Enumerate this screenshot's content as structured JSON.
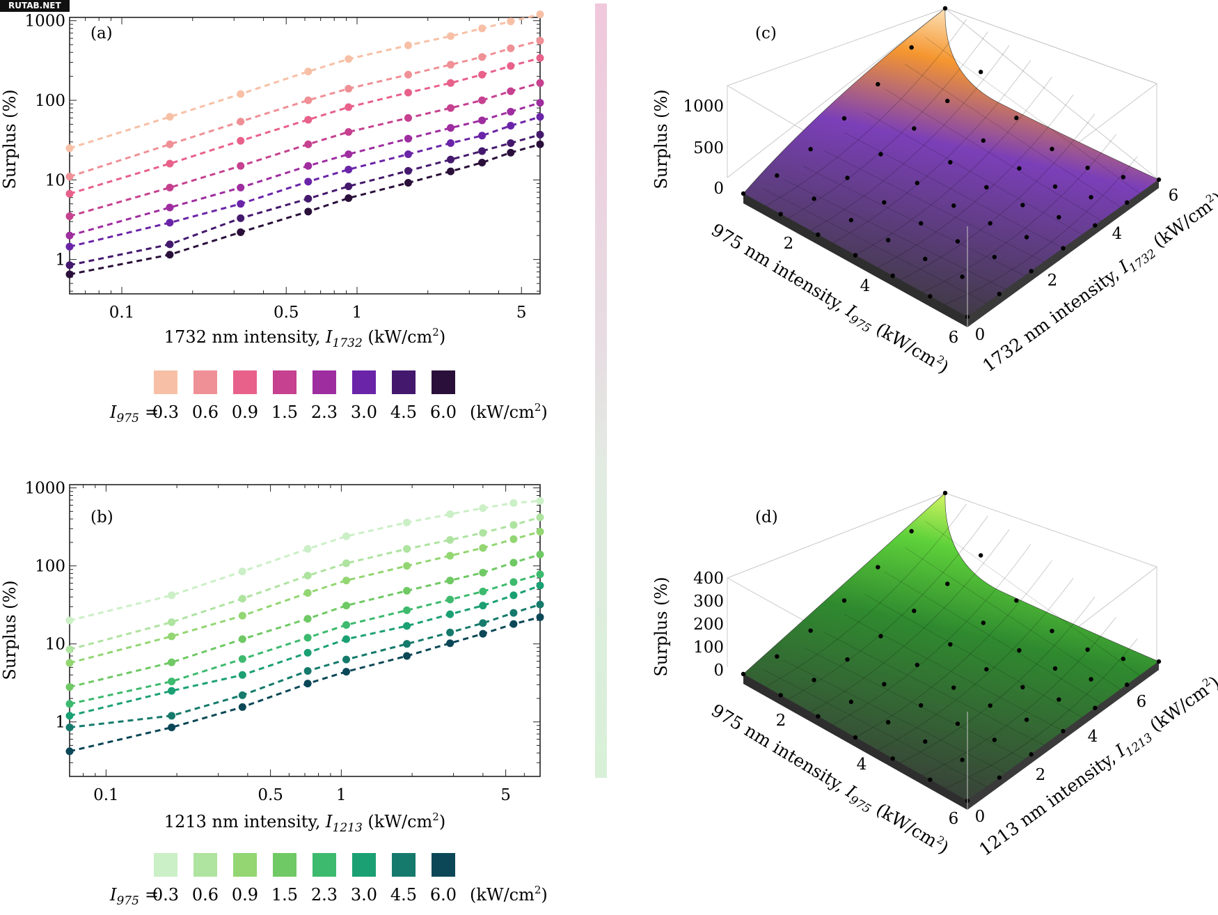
{
  "watermark": "RUTAB.NET",
  "chart_data": [
    {
      "panel": "(a)",
      "type": "line",
      "xscale": "log",
      "yscale": "log",
      "xlabel": "1732 nm intensity, I1732 (kW/cm2)",
      "xlabel_parts": {
        "pre": "1732 nm intensity, ",
        "var": "I",
        "sub": "1732",
        "unit_pre": " (kW/cm",
        "sup": "2",
        "unit_post": ")"
      },
      "ylabel": "Surplus (%)",
      "xlim": [
        0.06,
        6.0
      ],
      "ylim": [
        0.37,
        1100
      ],
      "xticks": [
        {
          "v": 0.1,
          "label": "0.1"
        },
        {
          "v": 0.5,
          "label": "0.5"
        },
        {
          "v": 1,
          "label": "1"
        },
        {
          "v": 5,
          "label": "5"
        }
      ],
      "yticks": [
        {
          "v": 1,
          "label": "1"
        },
        {
          "v": 10,
          "label": "10"
        },
        {
          "v": 100,
          "label": "100"
        },
        {
          "v": 1000,
          "label": "1000"
        }
      ],
      "x": [
        0.06,
        0.16,
        0.32,
        0.62,
        0.92,
        1.65,
        2.5,
        3.4,
        4.5,
        6.0
      ],
      "series": [
        {
          "name": "0.3",
          "color": "#f7c0a6",
          "values": [
            25,
            62,
            120,
            230,
            330,
            490,
            640,
            800,
            980,
            1200
          ]
        },
        {
          "name": "0.6",
          "color": "#ef9096",
          "values": [
            11,
            28,
            54,
            100,
            140,
            210,
            280,
            350,
            450,
            560
          ]
        },
        {
          "name": "0.9",
          "color": "#e8618a",
          "values": [
            6.7,
            16,
            31,
            57,
            82,
            125,
            165,
            210,
            270,
            340
          ]
        },
        {
          "name": "1.5",
          "color": "#c6418f",
          "values": [
            3.5,
            8,
            15,
            28,
            40,
            60,
            80,
            100,
            130,
            165
          ]
        },
        {
          "name": "2.3",
          "color": "#9e2d9f",
          "values": [
            2.0,
            4.5,
            8,
            15,
            21,
            33,
            45,
            56,
            72,
            93
          ]
        },
        {
          "name": "3.0",
          "color": "#6a24a8",
          "values": [
            1.45,
            2.9,
            5.0,
            9.5,
            13.5,
            21,
            29,
            36,
            48,
            62
          ]
        },
        {
          "name": "4.5",
          "color": "#44196d",
          "values": [
            0.85,
            1.55,
            3.3,
            5.8,
            8.3,
            13,
            18,
            23,
            29,
            37
          ]
        },
        {
          "name": "6.0",
          "color": "#2a0f3a",
          "values": [
            0.65,
            1.15,
            2.2,
            4.0,
            5.9,
            9.2,
            12.8,
            16.5,
            22,
            28
          ]
        }
      ],
      "legend": {
        "label": "I975",
        "label_var": "I",
        "label_sub": "975",
        "equals": "=",
        "unit_pre": "(kW/cm",
        "unit_sup": "2",
        "unit_post": ")"
      }
    },
    {
      "panel": "(b)",
      "type": "line",
      "xscale": "log",
      "yscale": "log",
      "xlabel": "1213 nm intensity, I1213 (kW/cm2)",
      "xlabel_parts": {
        "pre": "1213 nm intensity, ",
        "var": "I",
        "sub": "1213",
        "unit_pre": " (kW/cm",
        "sup": "2",
        "unit_post": ")"
      },
      "ylabel": "Surplus (%)",
      "xlim": [
        0.07,
        7.0
      ],
      "ylim": [
        0.2,
        1100
      ],
      "xticks": [
        {
          "v": 0.1,
          "label": "0.1"
        },
        {
          "v": 0.5,
          "label": "0.5"
        },
        {
          "v": 1,
          "label": "1"
        },
        {
          "v": 5,
          "label": "5"
        }
      ],
      "yticks": [
        {
          "v": 1,
          "label": "1"
        },
        {
          "v": 10,
          "label": "10"
        },
        {
          "v": 100,
          "label": "100"
        },
        {
          "v": 1000,
          "label": "1000"
        }
      ],
      "x": [
        0.07,
        0.19,
        0.38,
        0.72,
        1.05,
        1.9,
        2.9,
        4.0,
        5.4,
        7.0
      ],
      "series": [
        {
          "name": "0.3",
          "color": "#cbefc6",
          "values": [
            20,
            42,
            85,
            165,
            240,
            360,
            460,
            550,
            640,
            680
          ]
        },
        {
          "name": "0.6",
          "color": "#aee3a0",
          "values": [
            8.5,
            19,
            38,
            75,
            108,
            165,
            215,
            265,
            335,
            420
          ]
        },
        {
          "name": "0.9",
          "color": "#93d672",
          "values": [
            5.7,
            12.5,
            23,
            45,
            65,
            100,
            135,
            170,
            220,
            275
          ]
        },
        {
          "name": "1.5",
          "color": "#6fc964",
          "values": [
            2.8,
            5.8,
            11.5,
            21,
            31,
            48,
            65,
            82,
            110,
            140
          ]
        },
        {
          "name": "2.3",
          "color": "#3dba6e",
          "values": [
            1.7,
            3.3,
            6.4,
            12,
            17.5,
            27,
            37,
            47,
            62,
            78
          ]
        },
        {
          "name": "3.0",
          "color": "#1aa073",
          "values": [
            1.2,
            2.5,
            4.0,
            7.7,
            11.5,
            17,
            24,
            31,
            42,
            56
          ]
        },
        {
          "name": "4.5",
          "color": "#157a6b",
          "values": [
            0.85,
            1.2,
            2.2,
            4.5,
            6.3,
            10.0,
            14.0,
            18.5,
            25,
            32
          ]
        },
        {
          "name": "6.0",
          "color": "#0b4757",
          "values": [
            0.42,
            0.85,
            1.55,
            3.1,
            4.4,
            7.0,
            10.2,
            13.5,
            18,
            22
          ]
        }
      ],
      "legend": {
        "label": "I975",
        "label_var": "I",
        "label_sub": "975",
        "equals": "=",
        "unit_pre": "(kW/cm",
        "unit_sup": "2",
        "unit_post": ")"
      }
    },
    {
      "panel": "(c)",
      "type": "surface",
      "zlabel": "Surplus (%)",
      "zticks": [
        "1000",
        "500",
        "0"
      ],
      "xlabel": "975 nm intensity, I975 (kW/cm2)",
      "xlabel_parts": {
        "pre": "975 nm intensity, ",
        "var": "I",
        "sub": "975",
        "unit_pre": " (kW/cm",
        "sup": "2",
        "unit_post": ")"
      },
      "xticks": [
        "2",
        "4",
        "6"
      ],
      "ylabel": "1732 nm intensity, I1732 (kW/cm2)",
      "ylabel_parts": {
        "pre": "1732 nm intensity, ",
        "var": "I",
        "sub": "1732",
        "unit_pre": " (kW/cm",
        "sup": "2",
        "unit_post": ")"
      },
      "yticks": [
        "0",
        "2",
        "4",
        "6"
      ],
      "zlim": [
        0,
        1200
      ],
      "colors": [
        "#3a3a3a",
        "#7b3fb8",
        "#f5962f",
        "#fff8e0"
      ]
    },
    {
      "panel": "(d)",
      "type": "surface",
      "zlabel": "Surplus (%)",
      "zticks": [
        "400",
        "300",
        "200",
        "100",
        "0"
      ],
      "xlabel": "975 nm intensity, I975 (kW/cm2)",
      "xlabel_parts": {
        "pre": "975 nm intensity, ",
        "var": "I",
        "sub": "975",
        "unit_pre": " (kW/cm",
        "sup": "2",
        "unit_post": ")"
      },
      "xticks": [
        "2",
        "4",
        "6"
      ],
      "ylabel": "1213 nm intensity, I1213 (kW/cm2)",
      "ylabel_parts": {
        "pre": "1213 nm intensity, ",
        "var": "I",
        "sub": "1213",
        "unit_pre": " (kW/cm",
        "sup": "2",
        "unit_post": ")"
      },
      "yticks": [
        "0",
        "2",
        "4",
        "6"
      ],
      "zlim": [
        0,
        450
      ],
      "colors": [
        "#3a3a3a",
        "#2f8a2f",
        "#5ed13a",
        "#f6ff70"
      ]
    }
  ],
  "colorbar": {
    "colors_top": [
      "#f0c8dc",
      "#e7dde2"
    ],
    "colors_bottom": [
      "#e2ebe2",
      "#d8f0d8"
    ]
  }
}
